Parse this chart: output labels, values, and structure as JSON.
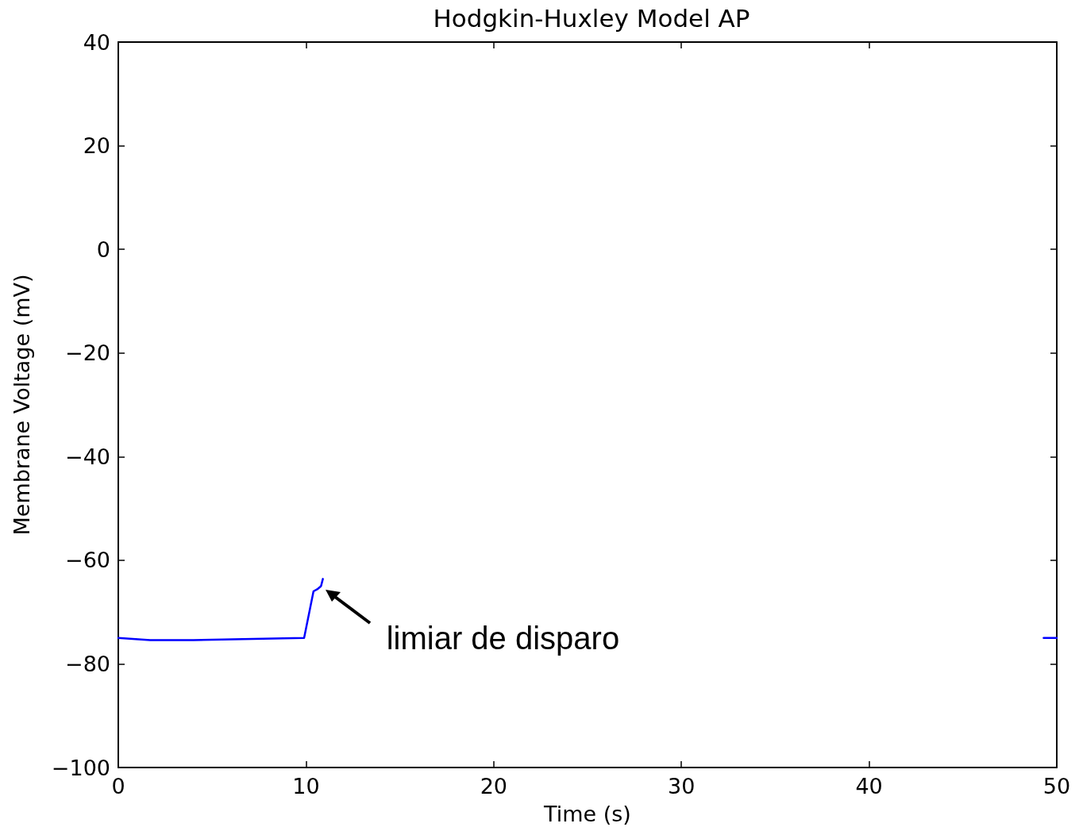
{
  "chart_data": {
    "type": "line",
    "title": "Hodgkin-Huxley Model AP",
    "xlabel": "Time (s)",
    "ylabel": "Membrane Voltage (mV)",
    "x": [
      0,
      1.7,
      4,
      9.9,
      10.4,
      10.6,
      10.8,
      10.9,
      30,
      49.3,
      50
    ],
    "series": [
      {
        "color": "#0000ff",
        "values": [
          -75,
          -75.4,
          -75.4,
          -75,
          -66,
          -65.6,
          -65,
          -63.6,
          null,
          -75,
          -75
        ]
      }
    ],
    "xlim": [
      0,
      50
    ],
    "xticks": [
      0,
      10,
      20,
      30,
      40,
      50
    ],
    "ylim": [
      -100,
      40
    ],
    "yticks": [
      {
        "value": -100,
        "label": "−100"
      },
      {
        "value": -80,
        "label": "−80"
      },
      {
        "value": -60,
        "label": "−60"
      },
      {
        "value": -40,
        "label": "−40"
      },
      {
        "value": -20,
        "label": "−20"
      },
      0,
      20,
      40
    ],
    "annotations": [
      "limiar de disparo"
    ],
    "marker": "none",
    "line_style": "solid"
  }
}
